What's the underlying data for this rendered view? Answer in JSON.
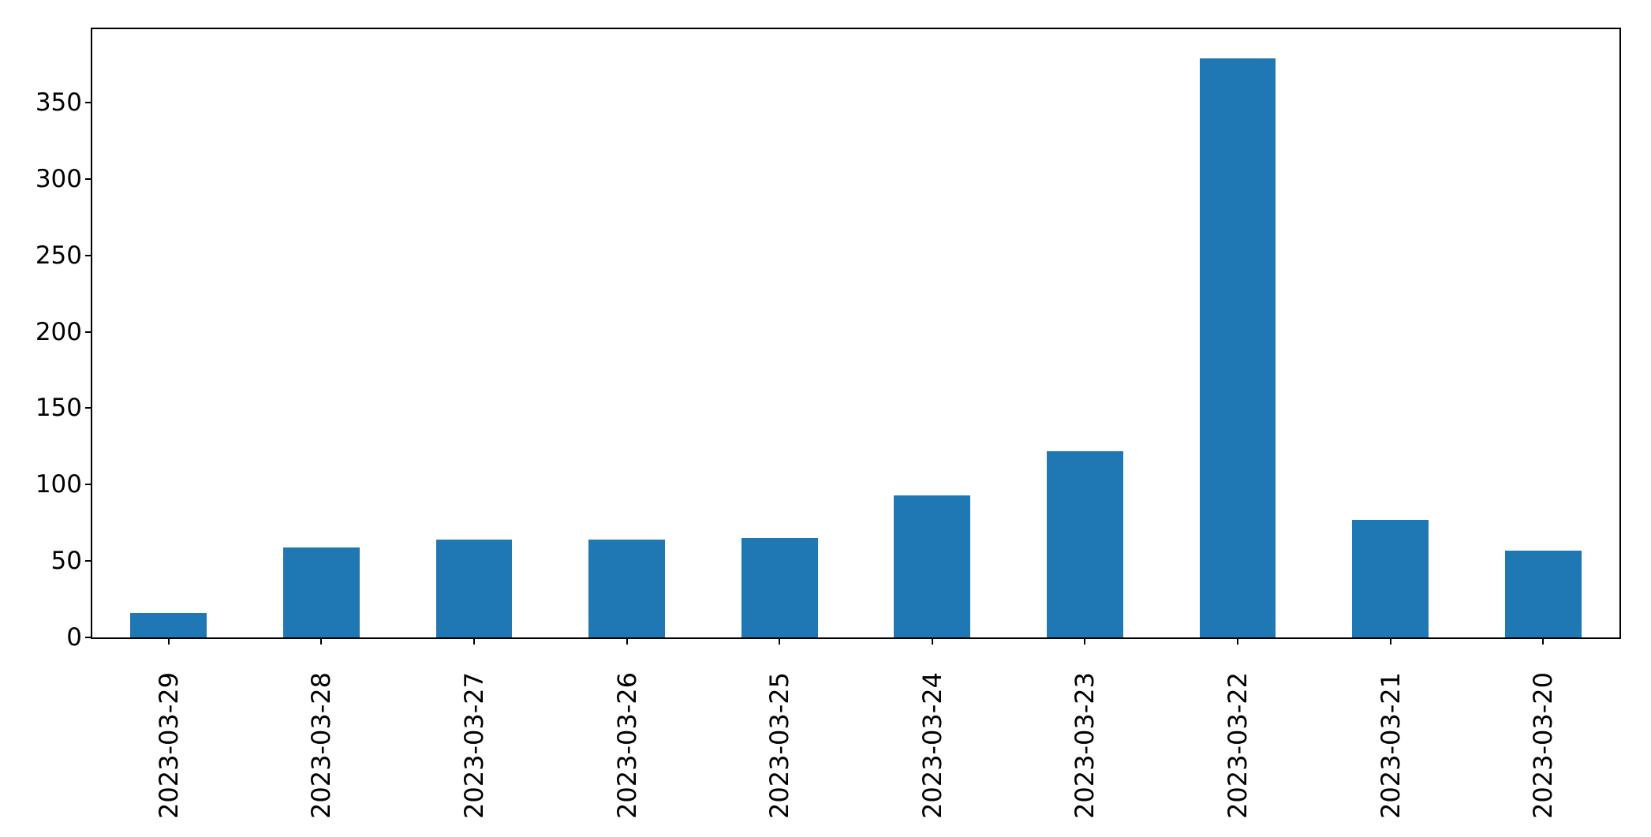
{
  "chart_data": {
    "type": "bar",
    "categories": [
      "2023-03-29",
      "2023-03-28",
      "2023-03-27",
      "2023-03-26",
      "2023-03-25",
      "2023-03-24",
      "2023-03-23",
      "2023-03-22",
      "2023-03-21",
      "2023-03-20"
    ],
    "values": [
      16,
      59,
      64,
      64,
      65,
      93,
      122,
      379,
      77,
      57
    ],
    "title": "",
    "xlabel": "",
    "ylabel": "",
    "y_ticks": [
      0,
      50,
      100,
      150,
      200,
      250,
      300,
      350
    ],
    "ylim": [
      0,
      398
    ],
    "x_tick_rotation_deg": 90,
    "bar_relative_width": 0.5,
    "grid": false,
    "legend": "none",
    "bar_color": "#1f77b4",
    "axis_color": "#000000",
    "tick_label_color": "#000000",
    "background_color": "#ffffff"
  }
}
